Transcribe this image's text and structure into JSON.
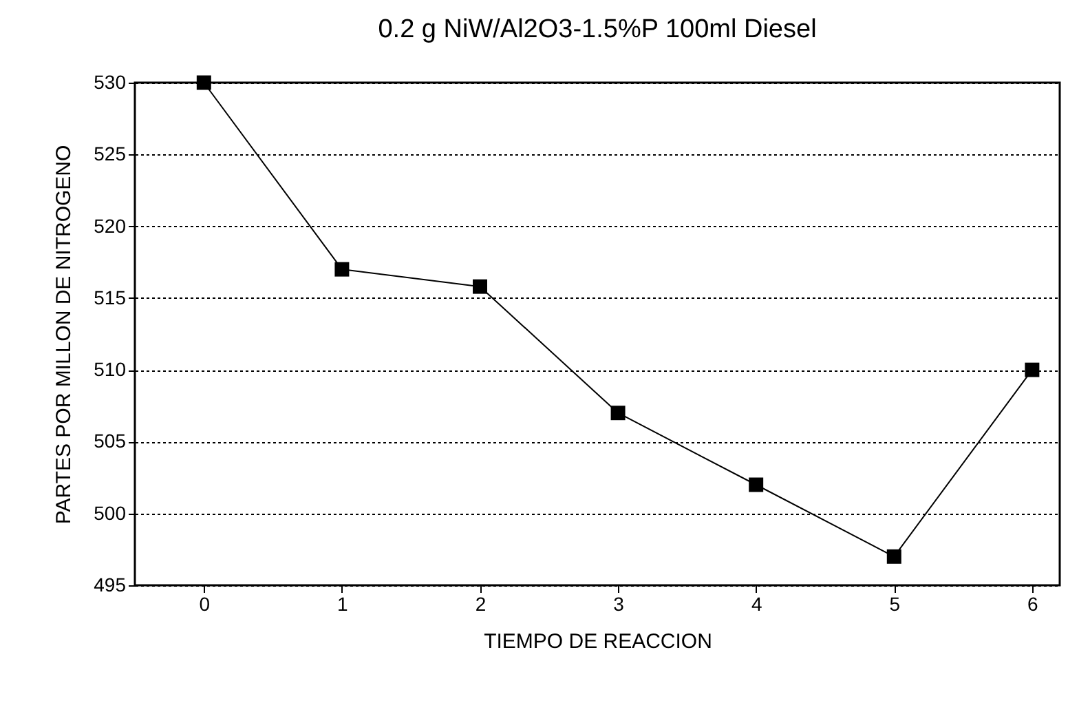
{
  "chart_data": {
    "type": "line",
    "title": "0.2 g NiW/Al2O3-1.5%P 100ml Diesel",
    "xlabel": "TIEMPO DE REACCION",
    "ylabel": "PARTES POR MILLON DE NITROGENO",
    "x": [
      0,
      1,
      2,
      3,
      4,
      5,
      6
    ],
    "series": [
      {
        "color": "#000000",
        "values": [
          530,
          517,
          515.8,
          507,
          502,
          497,
          510
        ]
      }
    ],
    "xlim": [
      -0.5,
      6.2
    ],
    "xticks": [
      0,
      1,
      2,
      3,
      4,
      5,
      6
    ],
    "ylim": [
      495,
      530
    ],
    "yticks": [
      495,
      500,
      505,
      510,
      515,
      520,
      525,
      530
    ],
    "grid": "y",
    "marker": "square",
    "line_style": "solid"
  }
}
